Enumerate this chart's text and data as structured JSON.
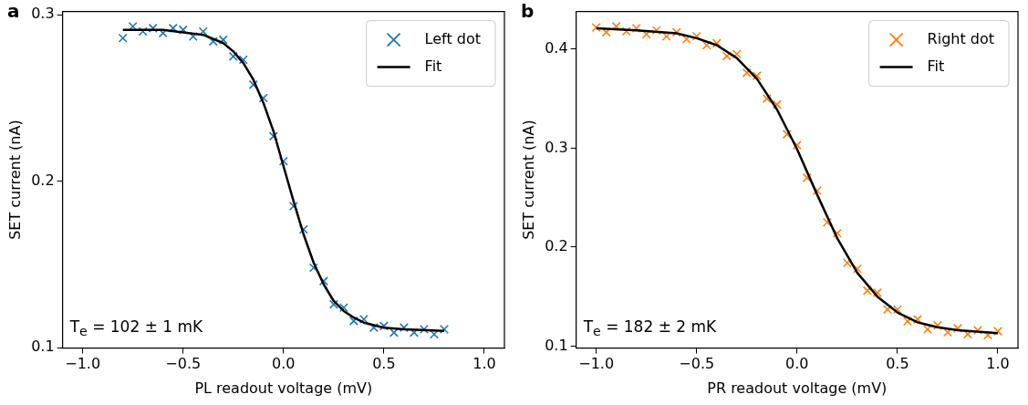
{
  "chart_data": [
    {
      "type": "scatter",
      "title": "a",
      "xlabel": "PL readout voltage (mV)",
      "ylabel": "SET current (nA)",
      "xlim": [
        -1.1,
        1.1
      ],
      "xticks": [
        {
          "value": -1,
          "label": "−1.0"
        },
        {
          "value": -0.5,
          "label": "−0.5"
        },
        {
          "value": 0,
          "label": "0.0"
        },
        {
          "value": 0.5,
          "label": "0.5"
        },
        {
          "value": 1,
          "label": "1.0"
        }
      ],
      "ylim": [
        0.0997,
        0.302
      ],
      "yticks": [
        0.1,
        0.2,
        0.3
      ],
      "grid": false,
      "legend": "top right",
      "annotations": [
        "T$_{e}$ = 102 ± 1 mK"
      ],
      "series": [
        {
          "name": "Left dot",
          "type": "scatter",
          "marker": "cross",
          "color": "#1f77b4",
          "x": [
            -0.8,
            -0.75,
            -0.7,
            -0.65,
            -0.6,
            -0.55,
            -0.5,
            -0.45,
            -0.4,
            -0.35,
            -0.3,
            -0.25,
            -0.2,
            -0.15,
            -0.1,
            -0.05,
            0,
            0.05,
            0.1,
            0.15,
            0.2,
            0.25,
            0.3,
            0.35,
            0.4,
            0.45,
            0.5,
            0.55,
            0.6,
            0.65,
            0.7,
            0.75,
            0.8
          ],
          "values": [
            0.286,
            0.293,
            0.29,
            0.292,
            0.289,
            0.292,
            0.291,
            0.287,
            0.29,
            0.284,
            0.285,
            0.275,
            0.273,
            0.258,
            0.25,
            0.227,
            0.212,
            0.185,
            0.171,
            0.148,
            0.14,
            0.126,
            0.124,
            0.116,
            0.117,
            0.112,
            0.113,
            0.109,
            0.112,
            0.109,
            0.111,
            0.108,
            0.111
          ]
        },
        {
          "name": "Fit",
          "type": "line",
          "line_style": "solid",
          "color": "#000000",
          "x": [
            -0.8,
            -0.6,
            -0.4,
            -0.3,
            -0.25,
            -0.2,
            -0.15,
            -0.1,
            -0.05,
            0,
            0.05,
            0.1,
            0.15,
            0.2,
            0.25,
            0.3,
            0.35,
            0.4,
            0.5,
            0.6,
            0.8
          ],
          "values": [
            0.291,
            0.291,
            0.288,
            0.283,
            0.278,
            0.271,
            0.261,
            0.247,
            0.23,
            0.209,
            0.188,
            0.168,
            0.151,
            0.138,
            0.128,
            0.122,
            0.118,
            0.115,
            0.112,
            0.111,
            0.11
          ]
        }
      ]
    },
    {
      "type": "scatter",
      "title": "b",
      "xlabel": "PR readout voltage (mV)",
      "ylabel": "SET current (nA)",
      "xlim": [
        -1.1,
        1.1
      ],
      "xticks": [
        {
          "value": -1,
          "label": "−1.0"
        },
        {
          "value": -0.5,
          "label": "−0.5"
        },
        {
          "value": 0,
          "label": "0.0"
        },
        {
          "value": 0.5,
          "label": "0.5"
        },
        {
          "value": 1,
          "label": "1.0"
        }
      ],
      "ylim": [
        0.098,
        0.438
      ],
      "yticks": [
        0.1,
        0.2,
        0.3,
        0.4
      ],
      "grid": false,
      "legend": "top right",
      "annotations": [
        "T$_{e}$ = 182 ± 2 mK"
      ],
      "series": [
        {
          "name": "Right dot",
          "type": "scatter",
          "marker": "cross",
          "color": "#ff7f0e",
          "x": [
            -1,
            -0.95,
            -0.9,
            -0.85,
            -0.8,
            -0.75,
            -0.7,
            -0.65,
            -0.6,
            -0.55,
            -0.5,
            -0.45,
            -0.4,
            -0.35,
            -0.3,
            -0.25,
            -0.2,
            -0.15,
            -0.1,
            -0.05,
            0,
            0.05,
            0.1,
            0.15,
            0.2,
            0.25,
            0.3,
            0.35,
            0.4,
            0.45,
            0.5,
            0.55,
            0.6,
            0.65,
            0.7,
            0.75,
            0.8,
            0.85,
            0.9,
            0.95,
            1
          ],
          "values": [
            0.422,
            0.417,
            0.423,
            0.418,
            0.421,
            0.415,
            0.419,
            0.413,
            0.417,
            0.41,
            0.413,
            0.404,
            0.406,
            0.393,
            0.395,
            0.376,
            0.373,
            0.35,
            0.344,
            0.314,
            0.303,
            0.27,
            0.257,
            0.225,
            0.214,
            0.184,
            0.178,
            0.156,
            0.154,
            0.137,
            0.137,
            0.125,
            0.127,
            0.117,
            0.121,
            0.114,
            0.118,
            0.112,
            0.116,
            0.111,
            0.115
          ]
        },
        {
          "name": "Fit",
          "type": "line",
          "line_style": "solid",
          "color": "#000000",
          "x": [
            -1,
            -0.8,
            -0.6,
            -0.5,
            -0.4,
            -0.3,
            -0.2,
            -0.1,
            0,
            0.1,
            0.2,
            0.3,
            0.4,
            0.5,
            0.6,
            0.7,
            0.8,
            1
          ],
          "values": [
            0.421,
            0.419,
            0.416,
            0.411,
            0.404,
            0.391,
            0.37,
            0.339,
            0.299,
            0.253,
            0.209,
            0.174,
            0.15,
            0.134,
            0.124,
            0.119,
            0.116,
            0.113
          ]
        }
      ]
    }
  ]
}
